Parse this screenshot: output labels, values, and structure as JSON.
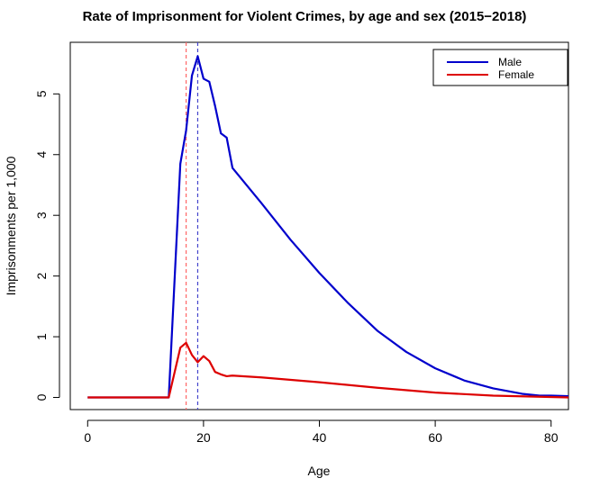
{
  "chart_data": {
    "type": "line",
    "title": "Rate of Imprisonment for Violent Crimes, by age and sex (2015−2018)",
    "xlabel": "Age",
    "ylabel": "Imprisonments per 1,000",
    "xlim": [
      -3,
      83
    ],
    "ylim": [
      -0.2,
      5.85
    ],
    "x_ticks": [
      0,
      20,
      40,
      60,
      80
    ],
    "y_ticks": [
      0,
      1,
      2,
      3,
      4,
      5
    ],
    "grid": false,
    "legend": {
      "position": "top-right",
      "entries": [
        "Male",
        "Female"
      ]
    },
    "series": [
      {
        "name": "Male",
        "color": "#0000cc",
        "x": [
          0,
          14,
          16,
          17,
          18,
          19,
          20,
          21,
          22,
          23,
          24,
          25,
          30,
          35,
          40,
          45,
          50,
          55,
          60,
          65,
          70,
          75,
          78,
          80,
          83
        ],
        "y": [
          0,
          0,
          3.85,
          4.4,
          5.3,
          5.62,
          5.25,
          5.2,
          4.8,
          4.35,
          4.28,
          3.78,
          3.2,
          2.6,
          2.05,
          1.55,
          1.1,
          0.75,
          0.48,
          0.28,
          0.15,
          0.06,
          0.03,
          0.03,
          0.02
        ]
      },
      {
        "name": "Female",
        "color": "#dd0000",
        "x": [
          0,
          14,
          16,
          17,
          18,
          19,
          20,
          21,
          22,
          23,
          24,
          25,
          30,
          40,
          50,
          60,
          70,
          83
        ],
        "y": [
          0,
          0,
          0.82,
          0.9,
          0.7,
          0.58,
          0.68,
          0.6,
          0.42,
          0.38,
          0.35,
          0.36,
          0.33,
          0.25,
          0.16,
          0.08,
          0.03,
          0.0
        ]
      }
    ],
    "vlines": [
      {
        "x": 17,
        "color": "#ff6666",
        "style": "dashed"
      },
      {
        "x": 19,
        "color": "#4444cc",
        "style": "dashed"
      }
    ]
  }
}
